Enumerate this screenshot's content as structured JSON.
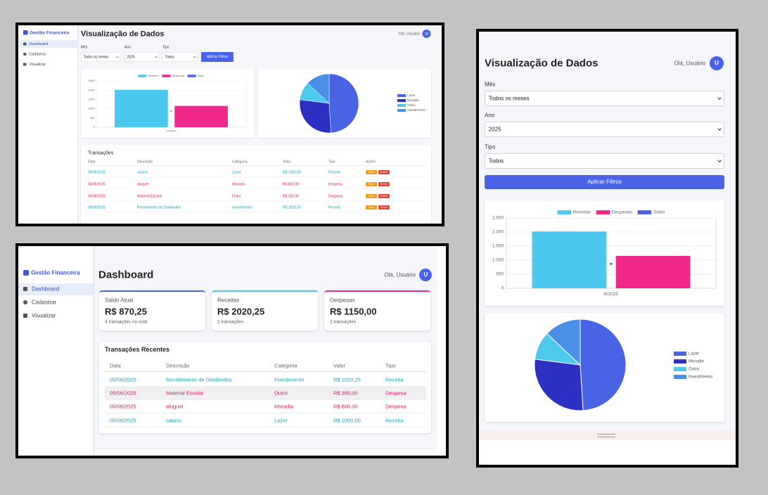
{
  "app_name": "Gestão Financeira",
  "nav": [
    "Dashboard",
    "Cadastrar",
    "Visualizar"
  ],
  "greeting": "Olá, Usuário",
  "avatar": "U",
  "dashboard": {
    "title": "Dashboard",
    "cards": [
      {
        "label": "Saldo Atual",
        "value": "R$ 870,25",
        "note": "4 transações no total",
        "color": "#4a63e8"
      },
      {
        "label": "Receitas",
        "value": "R$ 2020,25",
        "note": "2 transações",
        "color": "#4bc8ee"
      },
      {
        "label": "Despesas",
        "value": "R$ 1150,00",
        "note": "2 transações",
        "color": "#f0288a"
      }
    ],
    "recent_title": "Transações Recentes",
    "columns": [
      "Data",
      "Descrição",
      "Categoria",
      "Valor",
      "Tipo"
    ],
    "rows": [
      [
        "05/06/2025",
        "Recebimento de Dividendos",
        "Investimento",
        "R$ 1020,25",
        "Receita"
      ],
      [
        "05/06/2025",
        "Material Escolar",
        "Outro",
        "R$ 350,00",
        "Despesa"
      ],
      [
        "05/06/2025",
        "aluguel",
        "Moradia",
        "R$ 800,00",
        "Despesa"
      ],
      [
        "05/06/2025",
        "salario",
        "Lazer",
        "R$ 1000,00",
        "Receita"
      ]
    ],
    "row_colors": [
      "#17a2b8",
      "#d81b60",
      "#d81b60",
      "#17a2b8"
    ]
  },
  "visualization": {
    "title": "Visualização de Dados",
    "filters": [
      {
        "label": "Mês",
        "value": "Todos os meses"
      },
      {
        "label": "Ano",
        "value": "2025"
      },
      {
        "label": "Tipo",
        "value": "Todos"
      }
    ],
    "apply": "Aplicar Filtros",
    "transactions_title": "Transações",
    "columns": [
      "Data",
      "Descrição",
      "Categoria",
      "Valor",
      "Tipo",
      "Ações"
    ],
    "rows": [
      [
        "05/06/2025",
        "salario",
        "Lazer",
        "R$ 1000,00",
        "Receita"
      ],
      [
        "05/06/2025",
        "aluguel",
        "Moradia",
        "R$ 800,00",
        "Despesa"
      ],
      [
        "05/06/2025",
        "Material Escolar",
        "Outro",
        "R$ 350,00",
        "Despesa"
      ],
      [
        "05/06/2025",
        "Recebimento de Dividendos",
        "Investimento",
        "R$ 1020,25",
        "Receita"
      ]
    ],
    "row_colors": [
      "#17a2b8",
      "#d81b60",
      "#d81b60",
      "#17a2b8"
    ],
    "actions": [
      "Editar",
      "Excluir"
    ],
    "action_colors": [
      "#f0a020",
      "#e74c3c"
    ],
    "bar_chart": {
      "type": "bar",
      "categories": [
        "6/2025"
      ],
      "ylim": [
        0,
        2500
      ],
      "yticks": [
        0,
        500,
        {
          "value": 1000,
          "label": "1.000"
        },
        {
          "value": 1500,
          "label": "1.500"
        },
        {
          "value": 2000,
          "label": "2.000"
        },
        {
          "value": 2500,
          "label": "2.500"
        }
      ],
      "grid": true,
      "legend": "top",
      "series": [
        {
          "name": "Receitas",
          "color": "#4bc8ee",
          "values": [
            2020.25
          ]
        },
        {
          "name": "Despesas",
          "color": "#f0288a",
          "values": [
            1150
          ]
        },
        {
          "name": "Saldo",
          "color": "#4a63e8",
          "type": "line",
          "values": [
            870.25
          ]
        }
      ]
    },
    "pie_chart": {
      "type": "pie",
      "categories": [
        "Lazer",
        "Moradia",
        "Outro",
        "Investimento"
      ],
      "values": [
        49,
        28,
        10,
        13
      ],
      "colors": [
        "#4863e6",
        "#2d30c2",
        "#4dc9ee",
        "#4a90e6"
      ],
      "legend": "right"
    }
  }
}
